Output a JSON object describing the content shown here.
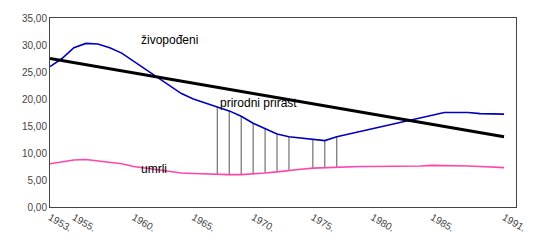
{
  "chart_data": {
    "type": "line",
    "series": [
      {
        "color": "#0000bb",
        "x": [
          1953,
          1954,
          1955,
          1956,
          1957,
          1958,
          1959,
          1960,
          1961,
          1962,
          1963,
          1964,
          1965,
          1966,
          1967,
          1968,
          1969,
          1970,
          1971,
          1972,
          1973,
          1974,
          1975,
          1976,
          1977,
          1978,
          1979,
          1980,
          1981,
          1982,
          1983,
          1984,
          1985,
          1986,
          1987,
          1988,
          1989,
          1990,
          1991
        ],
        "values": [
          26.0,
          27.5,
          29.5,
          30.3,
          30.2,
          29.5,
          28.5,
          27.0,
          25.5,
          24.0,
          22.5,
          21.0,
          20.0,
          19.2,
          18.5,
          17.8,
          16.8,
          15.5,
          14.5,
          13.5,
          13.0,
          12.8,
          12.5,
          12.3,
          13.0,
          13.5,
          14.0,
          14.5,
          15.0,
          15.5,
          16.0,
          16.5,
          17.0,
          17.5,
          17.5,
          17.5,
          17.3,
          17.2,
          17.2
        ]
      },
      {
        "color": "#ff44aa",
        "x": [
          1953,
          1954,
          1955,
          1956,
          1957,
          1958,
          1959,
          1960,
          1961,
          1962,
          1963,
          1964,
          1965,
          1966,
          1967,
          1968,
          1969,
          1970,
          1971,
          1972,
          1973,
          1974,
          1975,
          1976,
          1977,
          1978,
          1979,
          1980,
          1981,
          1982,
          1983,
          1984,
          1985,
          1986,
          1987,
          1988,
          1989,
          1990,
          1991
        ],
        "values": [
          8.0,
          8.3,
          8.7,
          8.8,
          8.5,
          8.3,
          8.0,
          7.5,
          7.2,
          6.8,
          6.5,
          6.3,
          6.2,
          6.1,
          6.0,
          6.0,
          6.0,
          6.1,
          6.3,
          6.5,
          6.8,
          7.0,
          7.2,
          7.3,
          7.4,
          7.5,
          7.5,
          7.5,
          7.5,
          7.6,
          7.6,
          7.6,
          7.7,
          7.7,
          7.7,
          7.6,
          7.5,
          7.4,
          7.3
        ]
      },
      {
        "color": "#000000",
        "x": [
          1953,
          1991
        ],
        "values": [
          27.5,
          13.0
        ]
      }
    ],
    "vlines": {
      "color": "#555555",
      "x": [
        1967,
        1968,
        1969,
        1970,
        1971,
        1972,
        1973,
        1975,
        1976,
        1977
      ],
      "low": [
        6.0,
        6.0,
        6.0,
        6.1,
        6.3,
        6.5,
        6.8,
        7.2,
        7.3,
        7.4
      ],
      "high": [
        18.5,
        17.8,
        16.8,
        15.5,
        14.5,
        13.5,
        13.0,
        12.5,
        12.3,
        13.0
      ]
    },
    "annotations": [
      "živoрođeni",
      "prirodni prirast",
      "umrli"
    ],
    "xlim": [
      1953,
      1992
    ],
    "xticks": [
      {
        "value": 1953,
        "label": "1953."
      },
      {
        "value": 1955,
        "label": "1955."
      },
      {
        "value": 1960,
        "label": "1960."
      },
      {
        "value": 1965,
        "label": "1965."
      },
      {
        "value": 1970,
        "label": "1970."
      },
      {
        "value": 1975,
        "label": "1975."
      },
      {
        "value": 1980,
        "label": "1980."
      },
      {
        "value": 1985,
        "label": "1985."
      },
      {
        "value": 1991,
        "label": "1991."
      }
    ],
    "ylim": [
      0,
      35
    ],
    "yticks": [
      {
        "value": 0,
        "label": "0,00"
      },
      {
        "value": 5,
        "label": "5,00"
      },
      {
        "value": 10,
        "label": "10,00"
      },
      {
        "value": 15,
        "label": "15,00"
      },
      {
        "value": 20,
        "label": "20,00"
      },
      {
        "value": 25,
        "label": "25,00"
      },
      {
        "value": 30,
        "label": "30,00"
      },
      {
        "value": 35,
        "label": "35,00"
      }
    ],
    "grid": false
  }
}
